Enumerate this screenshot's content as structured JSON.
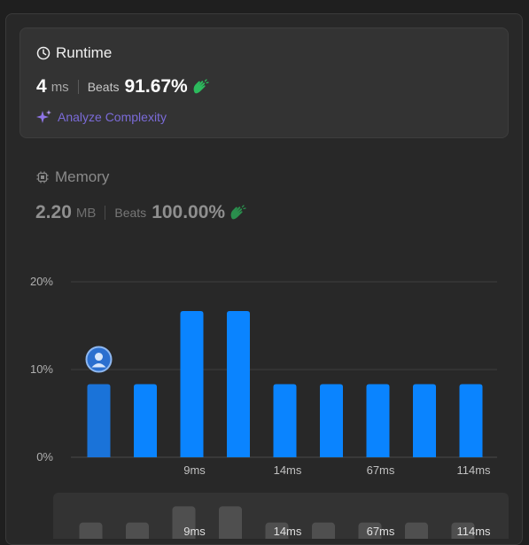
{
  "runtime": {
    "title": "Runtime",
    "value": "4",
    "unit": "ms",
    "beats_label": "Beats",
    "beats_percent": "91.67%",
    "analyze_label": "Analyze Complexity"
  },
  "memory": {
    "title": "Memory",
    "value": "2.20",
    "unit": "MB",
    "beats_label": "Beats",
    "beats_percent": "100.00%"
  },
  "colors": {
    "bar": "#0a84ff",
    "bar_highlight": "#1a73d9",
    "accent_green": "#2cbb5d",
    "analyze_purple": "#7b6bd8"
  },
  "chart_data": {
    "type": "bar",
    "ylim": [
      0,
      20
    ],
    "yticks": [
      "0%",
      "10%",
      "20%"
    ],
    "values": [
      8.33,
      8.33,
      16.67,
      16.67,
      8.33,
      8.33,
      8.33,
      8.33,
      8.33
    ],
    "x_labels": [
      "",
      "",
      "9ms",
      "",
      "14ms",
      "",
      "67ms",
      "",
      "114ms"
    ],
    "highlight_index": 0,
    "grid": true
  },
  "mini_chart": {
    "x_labels": [
      "",
      "",
      "9ms",
      "",
      "14ms",
      "",
      "67ms",
      "",
      "114ms"
    ]
  }
}
